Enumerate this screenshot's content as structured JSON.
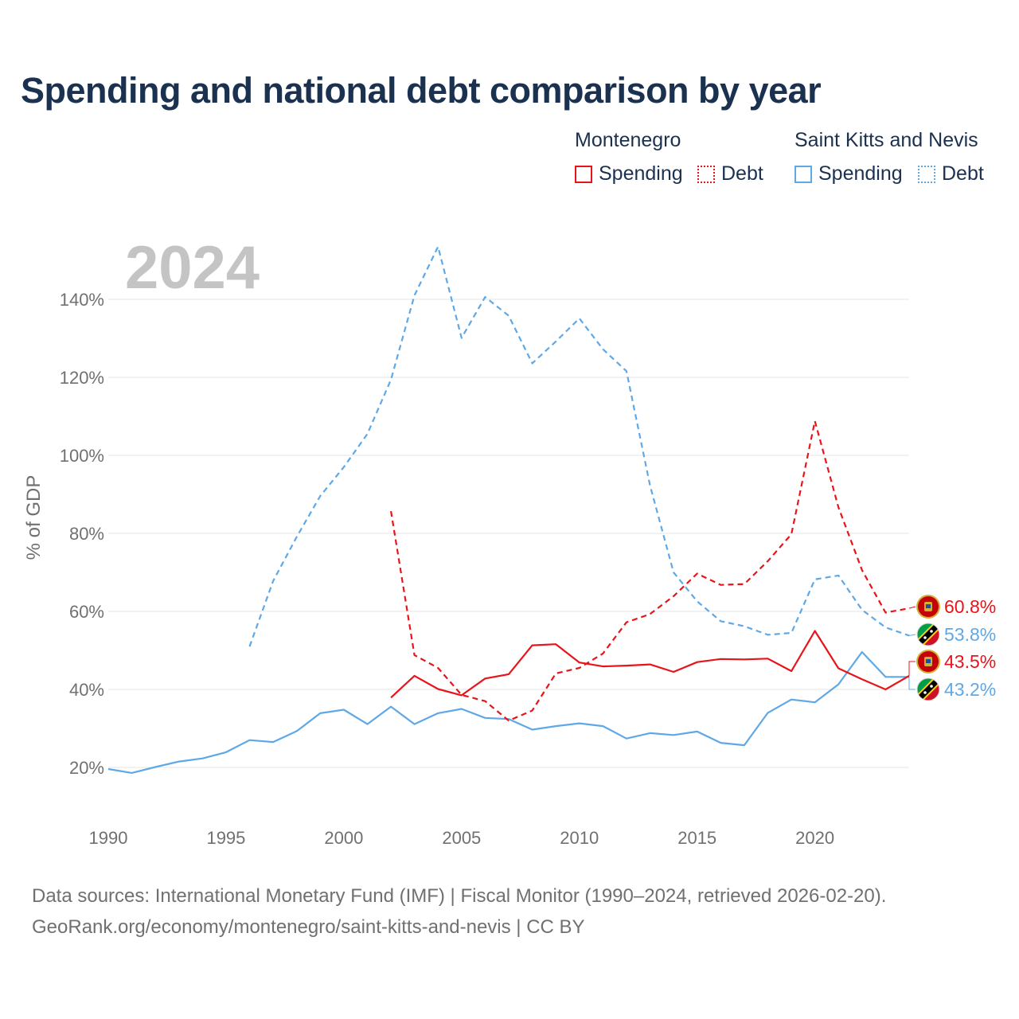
{
  "title": "Spending and national debt comparison by year",
  "legend": {
    "groups": [
      {
        "country": "Montenegro",
        "spending_label": "Spending",
        "debt_label": "Debt",
        "color": "#e8141b"
      },
      {
        "country": "Saint Kitts and Nevis",
        "spending_label": "Spending",
        "debt_label": "Debt",
        "color": "#5fa8e6"
      }
    ]
  },
  "year_label": "2024",
  "end_labels": {
    "me_debt": "60.8%",
    "kn_debt": "53.8%",
    "me_spending": "43.5%",
    "kn_spending": "43.2%"
  },
  "sources": {
    "line1": "Data sources: International Monetary Fund (IMF) | Fiscal Monitor (1990–2024, retrieved 2026-02-20).",
    "line2": "GeoRank.org/economy/montenegro/saint-kitts-and-nevis | CC BY"
  },
  "chart_data": {
    "type": "line",
    "title": "Spending and national debt comparison by year",
    "xlabel": "",
    "ylabel": "% of GDP",
    "xlim": [
      1990,
      2024
    ],
    "ylim": [
      10,
      155
    ],
    "x_ticks": [
      1990,
      1995,
      2000,
      2005,
      2010,
      2015,
      2020
    ],
    "y_ticks": [
      20,
      40,
      60,
      80,
      100,
      120,
      140
    ],
    "y_tick_labels": [
      "20%",
      "40%",
      "60%",
      "80%",
      "100%",
      "120%",
      "140%"
    ],
    "grid": true,
    "series": [
      {
        "name": "Saint Kitts and Nevis Spending",
        "color": "#5fa8e6",
        "dash": false,
        "x": [
          1990,
          1991,
          1992,
          1993,
          1994,
          1995,
          1996,
          1997,
          1998,
          1999,
          2000,
          2001,
          2002,
          2003,
          2004,
          2005,
          2006,
          2007,
          2008,
          2009,
          2010,
          2011,
          2012,
          2013,
          2014,
          2015,
          2016,
          2017,
          2018,
          2019,
          2020,
          2021,
          2022,
          2023,
          2024
        ],
        "values": [
          19.6,
          18.6,
          20.1,
          21.5,
          22.3,
          23.9,
          27.0,
          26.5,
          29.3,
          33.9,
          34.8,
          31.1,
          35.6,
          31.1,
          33.9,
          35.0,
          32.7,
          32.4,
          29.7,
          30.6,
          31.3,
          30.6,
          27.4,
          28.8,
          28.3,
          29.2,
          26.3,
          25.7,
          34.0,
          37.4,
          36.7,
          41.3,
          49.6,
          43.2,
          43.2
        ]
      },
      {
        "name": "Saint Kitts and Nevis Debt",
        "color": "#5fa8e6",
        "dash": true,
        "x": [
          1996,
          1997,
          1998,
          1999,
          2000,
          2001,
          2002,
          2003,
          2004,
          2005,
          2006,
          2007,
          2008,
          2009,
          2010,
          2011,
          2012,
          2013,
          2014,
          2015,
          2016,
          2017,
          2018,
          2019,
          2020,
          2021,
          2022,
          2023,
          2024
        ],
        "values": [
          51.0,
          67.8,
          79.1,
          89.6,
          97.0,
          105.5,
          119.4,
          141.0,
          153.5,
          130.1,
          140.6,
          135.8,
          123.6,
          129.2,
          135.1,
          127.2,
          121.6,
          92.3,
          70.0,
          62.6,
          57.5,
          56.2,
          54.0,
          54.5,
          68.2,
          69.2,
          60.4,
          55.9,
          53.8
        ]
      },
      {
        "name": "Montenegro Spending",
        "color": "#e8141b",
        "dash": false,
        "x": [
          2002,
          2003,
          2004,
          2005,
          2006,
          2007,
          2008,
          2009,
          2010,
          2011,
          2012,
          2013,
          2014,
          2015,
          2016,
          2017,
          2018,
          2019,
          2020,
          2021,
          2022,
          2023,
          2024
        ],
        "values": [
          37.9,
          43.5,
          40.1,
          38.5,
          42.8,
          43.9,
          51.3,
          51.6,
          46.9,
          45.9,
          46.1,
          46.4,
          44.5,
          47.0,
          47.8,
          47.7,
          47.9,
          44.7,
          55.0,
          45.4,
          42.6,
          40.0,
          43.5
        ]
      },
      {
        "name": "Montenegro Debt",
        "color": "#e8141b",
        "dash": true,
        "x": [
          2002,
          2003,
          2004,
          2005,
          2006,
          2007,
          2008,
          2009,
          2010,
          2011,
          2012,
          2013,
          2014,
          2015,
          2016,
          2017,
          2018,
          2019,
          2020,
          2021,
          2022,
          2023,
          2024
        ],
        "values": [
          85.7,
          48.8,
          45.5,
          38.6,
          37.0,
          32.0,
          34.6,
          44.1,
          45.5,
          49.2,
          57.2,
          59.3,
          63.9,
          69.7,
          66.8,
          67.0,
          72.9,
          79.8,
          108.8,
          86.7,
          70.6,
          59.7,
          60.8
        ]
      }
    ]
  }
}
